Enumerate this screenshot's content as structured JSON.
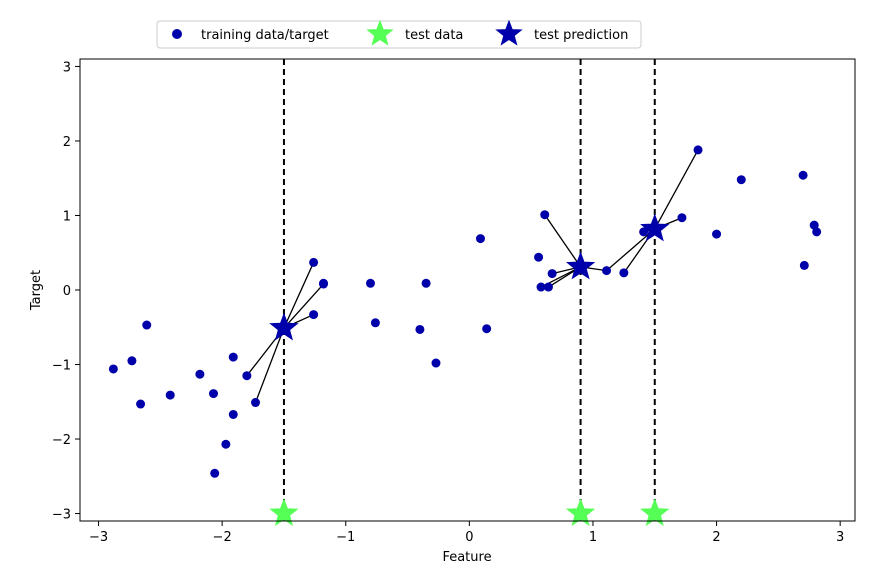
{
  "chart_data": {
    "type": "scatter",
    "xlabel": "Feature",
    "ylabel": "Target",
    "xlim": [
      -3.15,
      3.12
    ],
    "ylim": [
      -3.1,
      3.1
    ],
    "x_ticks": [
      -3,
      -2,
      -1,
      0,
      1,
      2,
      3
    ],
    "y_ticks": [
      -3,
      -2,
      -1,
      0,
      1,
      2,
      3
    ],
    "x_tick_labels": [
      "−3",
      "−2",
      "−1",
      "0",
      "1",
      "2",
      "3"
    ],
    "y_tick_labels": [
      "−3",
      "−2",
      "−1",
      "0",
      "1",
      "2",
      "3"
    ],
    "grid": false,
    "legend": {
      "placement": "top-center",
      "entries": [
        "training data/target",
        "test data",
        "test prediction"
      ]
    },
    "colors": {
      "training": "#0000aa",
      "test_data": "#55ff55",
      "test_prediction": "#0000aa",
      "neighbor_lines": "#000000",
      "vertical_lines": "#000000"
    },
    "series": [
      {
        "name": "training data/target",
        "marker": "circle",
        "points": [
          [
            -2.88,
            -1.06
          ],
          [
            -2.73,
            -0.95
          ],
          [
            -2.66,
            -1.53
          ],
          [
            -2.61,
            -0.47
          ],
          [
            -2.42,
            -1.41
          ],
          [
            -2.18,
            -1.13
          ],
          [
            -2.07,
            -1.39
          ],
          [
            -2.06,
            -2.46
          ],
          [
            -1.97,
            -2.07
          ],
          [
            -1.91,
            -0.9
          ],
          [
            -1.91,
            -1.67
          ],
          [
            -1.8,
            -1.15
          ],
          [
            -1.73,
            -1.51
          ],
          [
            -1.26,
            0.37
          ],
          [
            -1.26,
            -0.33
          ],
          [
            -1.18,
            0.08
          ],
          [
            -1.18,
            0.09
          ],
          [
            -0.8,
            0.09
          ],
          [
            -0.76,
            -0.44
          ],
          [
            -0.4,
            -0.53
          ],
          [
            -0.35,
            0.09
          ],
          [
            -0.27,
            -0.98
          ],
          [
            0.09,
            0.69
          ],
          [
            0.14,
            -0.52
          ],
          [
            0.56,
            0.44
          ],
          [
            0.58,
            0.04
          ],
          [
            0.61,
            1.01
          ],
          [
            0.64,
            0.04
          ],
          [
            0.67,
            0.22
          ],
          [
            1.11,
            0.26
          ],
          [
            1.25,
            0.23
          ],
          [
            1.41,
            0.78
          ],
          [
            1.72,
            0.97
          ],
          [
            1.85,
            1.88
          ],
          [
            2.0,
            0.75
          ],
          [
            2.2,
            1.48
          ],
          [
            2.7,
            1.54
          ],
          [
            2.71,
            0.33
          ],
          [
            2.79,
            0.87
          ],
          [
            2.81,
            0.78
          ]
        ]
      },
      {
        "name": "test data",
        "marker": "star",
        "points": [
          [
            -1.5,
            -3.0
          ],
          [
            0.9,
            -3.0
          ],
          [
            1.5,
            -3.0
          ]
        ]
      },
      {
        "name": "test prediction",
        "marker": "star",
        "points": [
          [
            -1.5,
            -0.51
          ],
          [
            0.9,
            0.31
          ],
          [
            1.5,
            0.82
          ]
        ]
      }
    ],
    "neighbor_links": [
      {
        "from": [
          -1.5,
          -0.51
        ],
        "to": [
          -1.26,
          0.37
        ]
      },
      {
        "from": [
          -1.5,
          -0.51
        ],
        "to": [
          -1.26,
          -0.33
        ]
      },
      {
        "from": [
          -1.5,
          -0.51
        ],
        "to": [
          -1.18,
          0.08
        ]
      },
      {
        "from": [
          -1.5,
          -0.51
        ],
        "to": [
          -1.8,
          -1.15
        ]
      },
      {
        "from": [
          -1.5,
          -0.51
        ],
        "to": [
          -1.73,
          -1.51
        ]
      },
      {
        "from": [
          0.9,
          0.31
        ],
        "to": [
          0.61,
          1.01
        ]
      },
      {
        "from": [
          0.9,
          0.31
        ],
        "to": [
          0.58,
          0.04
        ]
      },
      {
        "from": [
          0.9,
          0.31
        ],
        "to": [
          0.64,
          0.04
        ]
      },
      {
        "from": [
          0.9,
          0.31
        ],
        "to": [
          0.67,
          0.22
        ]
      },
      {
        "from": [
          0.9,
          0.31
        ],
        "to": [
          1.11,
          0.26
        ]
      },
      {
        "from": [
          1.5,
          0.82
        ],
        "to": [
          1.85,
          1.88
        ]
      },
      {
        "from": [
          1.5,
          0.82
        ],
        "to": [
          1.72,
          0.97
        ]
      },
      {
        "from": [
          1.5,
          0.82
        ],
        "to": [
          1.41,
          0.78
        ]
      },
      {
        "from": [
          1.5,
          0.82
        ],
        "to": [
          1.25,
          0.23
        ]
      },
      {
        "from": [
          1.5,
          0.82
        ],
        "to": [
          1.11,
          0.26
        ]
      }
    ],
    "vertical_lines_x": [
      -1.5,
      0.9,
      1.5
    ]
  }
}
